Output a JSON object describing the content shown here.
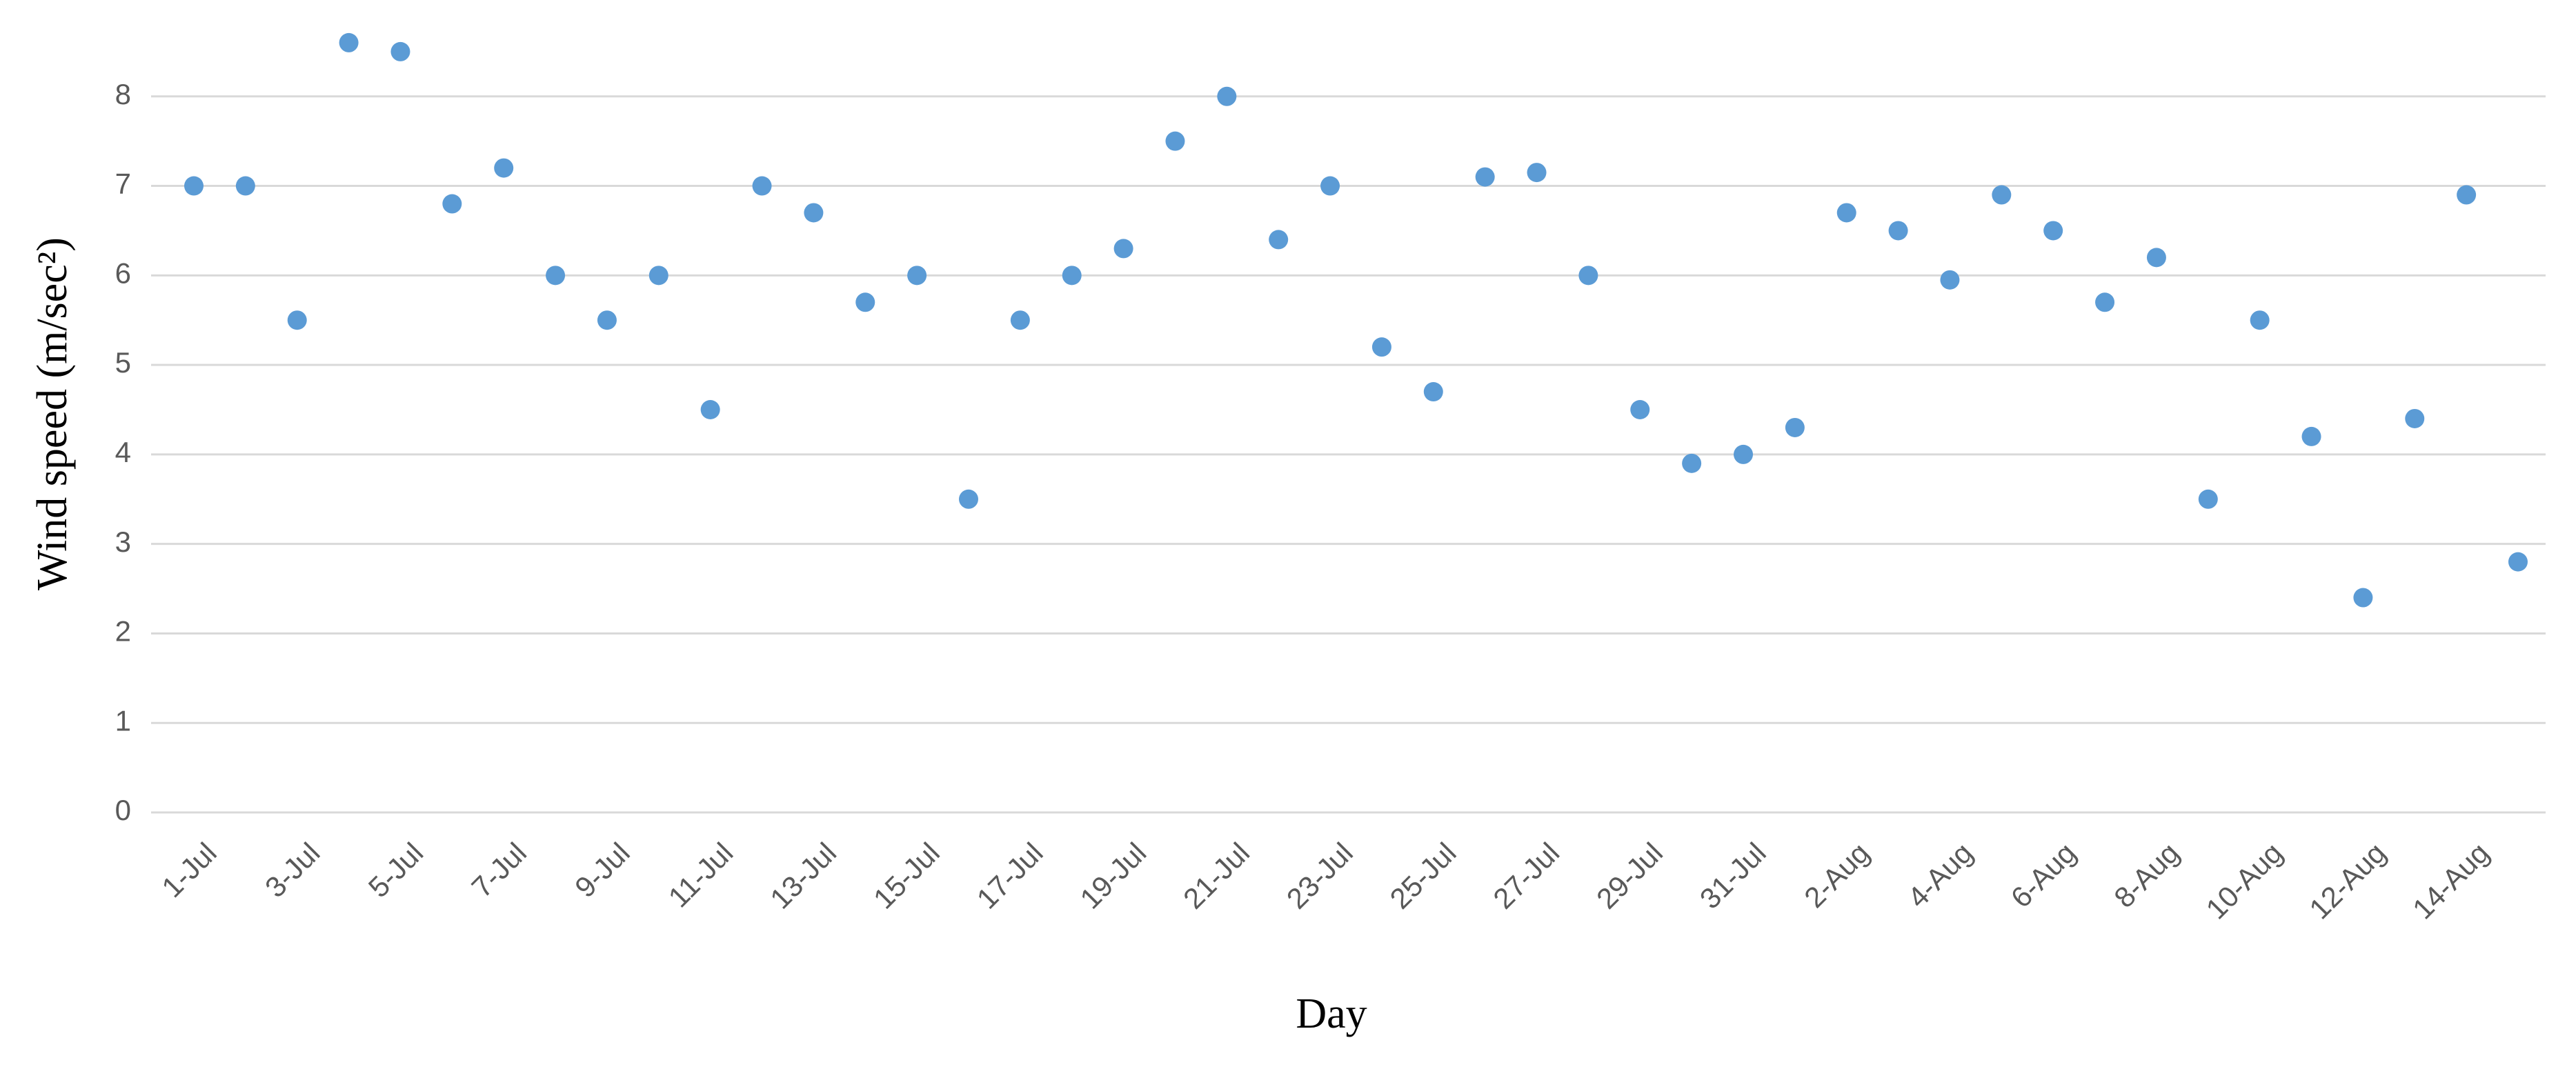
{
  "chart_data": {
    "type": "line",
    "x_label": "Day",
    "y_label": "Wind speed (m/sec²)",
    "categories": [
      "1-Jul",
      null,
      "3-Jul",
      null,
      "5-Jul",
      null,
      "7-Jul",
      null,
      "9-Jul",
      null,
      "11-Jul",
      null,
      "13-Jul",
      null,
      "15-Jul",
      null,
      "17-Jul",
      null,
      "19-Jul",
      null,
      "21-Jul",
      null,
      "23-Jul",
      null,
      "25-Jul",
      null,
      "27-Jul",
      null,
      "29-Jul",
      null,
      "31-Jul",
      null,
      "2-Aug",
      null,
      "4-Aug",
      null,
      "6-Aug",
      null,
      "8-Aug",
      null,
      "10-Aug",
      null,
      "12-Aug",
      null,
      "14-Aug",
      null
    ],
    "values": [
      7.0,
      7.0,
      5.5,
      8.6,
      8.5,
      6.8,
      7.2,
      6.0,
      5.5,
      6.0,
      4.5,
      7.0,
      6.7,
      5.7,
      6.0,
      3.5,
      5.5,
      6.0,
      6.3,
      7.5,
      8.0,
      6.4,
      7.0,
      5.2,
      4.7,
      7.1,
      7.15,
      6.0,
      4.5,
      3.9,
      4.0,
      4.3,
      6.7,
      6.5,
      5.95,
      6.9,
      6.5,
      5.7,
      6.2,
      3.5,
      5.5,
      4.2,
      2.4,
      4.4,
      6.9,
      2.8
    ],
    "color": "#5b9bd5",
    "ylim": [
      0,
      9
    ],
    "yticks": [
      0,
      1,
      2,
      3,
      4,
      5,
      6,
      7,
      8
    ],
    "grid": true
  }
}
